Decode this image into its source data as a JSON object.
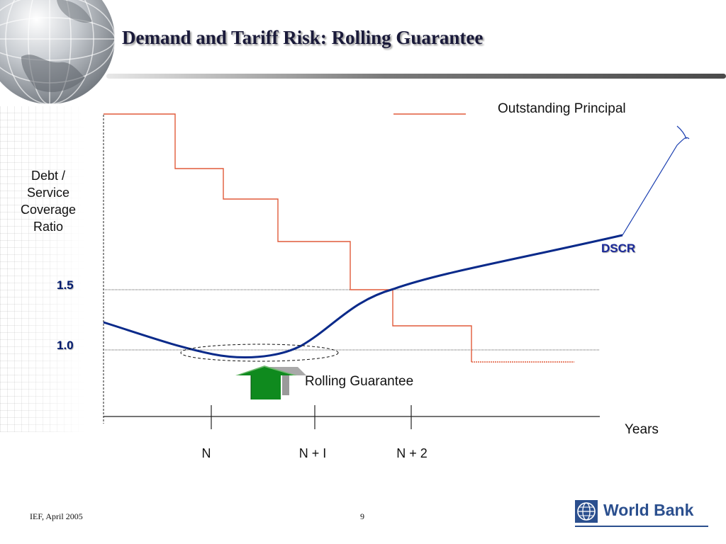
{
  "slide": {
    "title": "Demand and Tariff Risk: Rolling Guarantee",
    "footer_left": "IEF, April 2005",
    "page_number": "9",
    "logo_text": "World Bank"
  },
  "diagram": {
    "y_axis_label": [
      "Debt /",
      "Service",
      "Coverage",
      "Ratio"
    ],
    "y_ticks": [
      "1.5",
      "1.0"
    ],
    "legend_label": "Outstanding Principal",
    "dscr_label": "DSCR",
    "guarantee_label": "Rolling Guarantee",
    "x_axis_label": "Years",
    "x_ticks": [
      "N",
      "N + I",
      "N + 2"
    ],
    "colors": {
      "principal_line": "#e05a3a",
      "dscr_line": "#0a2a8a",
      "arrow_green": "#0f8a1e",
      "arrow_shadow": "#8a8a8a"
    }
  }
}
